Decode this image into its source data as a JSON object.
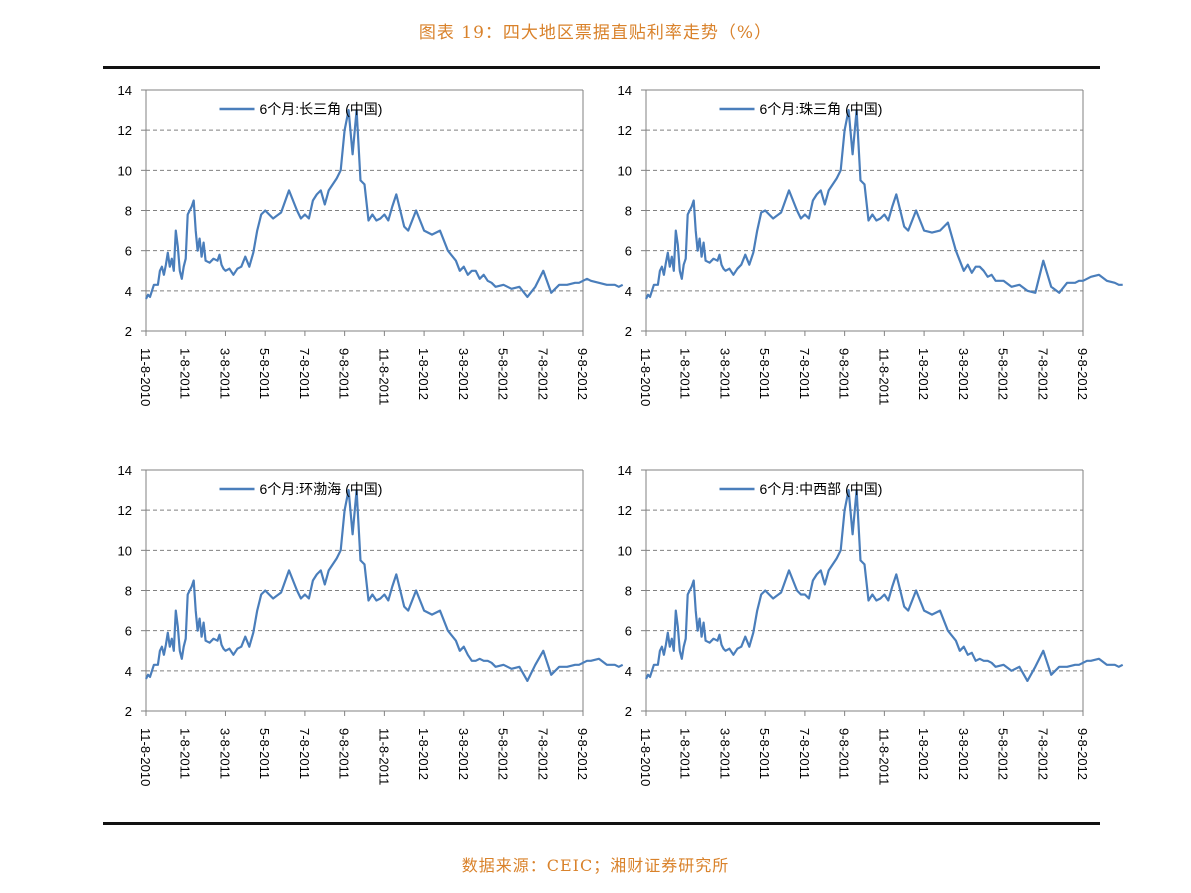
{
  "page": {
    "title": "图表 19：四大地区票据直贴利率走势（%）",
    "source": "数据来源：CEIC；湘财证券研究所"
  },
  "style": {
    "line_color": "#4a7ebb",
    "accent_color": "#d9822b"
  },
  "chart_data": [
    {
      "type": "line",
      "title": "",
      "legend": "6个月:长三角 (中国)",
      "legend_position": "top-center",
      "xlabel": "",
      "ylabel": "",
      "ylim": [
        2,
        14
      ],
      "yticks": [
        2,
        4,
        6,
        8,
        10,
        12,
        14
      ],
      "grid": "horizontal-dashed",
      "xtick_labels": [
        "11-8-2010",
        "1-8-2011",
        "3-8-2011",
        "5-8-2011",
        "7-8-2011",
        "9-8-2011",
        "11-8-2011",
        "1-8-2012",
        "3-8-2012",
        "5-8-2012",
        "7-8-2012",
        "9-8-2012"
      ],
      "series": [
        {
          "name": "6个月:长三角 (中国)",
          "x": [
            0,
            0.05,
            0.1,
            0.2,
            0.3,
            0.35,
            0.4,
            0.45,
            0.5,
            0.55,
            0.6,
            0.65,
            0.7,
            0.75,
            0.8,
            0.85,
            0.9,
            0.95,
            1,
            1.05,
            1.1,
            1.15,
            1.2,
            1.25,
            1.3,
            1.35,
            1.4,
            1.45,
            1.5,
            1.6,
            1.7,
            1.8,
            1.85,
            1.9,
            1.95,
            2,
            2.1,
            2.2,
            2.3,
            2.4,
            2.5,
            2.6,
            2.7,
            2.8,
            2.9,
            3,
            3.2,
            3.4,
            3.6,
            3.8,
            3.9,
            4,
            4.1,
            4.2,
            4.3,
            4.4,
            4.5,
            4.6,
            4.8,
            4.9,
            5,
            5.1,
            5.2,
            5.3,
            5.4,
            5.5,
            5.6,
            5.7,
            5.8,
            5.9,
            6,
            6.1,
            6.2,
            6.3,
            6.4,
            6.5,
            6.6,
            6.8,
            7,
            7.2,
            7.4,
            7.6,
            7.8,
            7.9,
            8,
            8.1,
            8.2,
            8.3,
            8.4,
            8.5,
            8.6,
            8.7,
            8.8,
            9,
            9.2,
            9.4,
            9.6,
            9.8,
            10,
            10.2,
            10.4,
            10.6,
            10.8,
            10.9,
            11,
            11.1,
            11.2,
            11.4,
            11.6,
            11.8,
            11.9,
            12
          ],
          "y": [
            3.6,
            3.8,
            3.7,
            4.3,
            4.3,
            5.0,
            5.2,
            4.8,
            5.3,
            5.9,
            5.2,
            5.6,
            5.0,
            7.0,
            6.2,
            5.0,
            4.6,
            5.2,
            5.6,
            7.8,
            8.0,
            8.2,
            8.5,
            7.0,
            6.0,
            6.6,
            5.7,
            6.4,
            5.5,
            5.4,
            5.6,
            5.5,
            5.8,
            5.3,
            5.1,
            5.0,
            5.1,
            4.8,
            5.1,
            5.2,
            5.7,
            5.2,
            5.9,
            7.0,
            7.8,
            8.0,
            7.6,
            7.9,
            9.0,
            8.0,
            7.6,
            7.8,
            7.6,
            8.5,
            8.8,
            9.0,
            8.3,
            9.0,
            9.6,
            10.0,
            12.0,
            13.0,
            10.8,
            13.0,
            9.5,
            9.3,
            7.5,
            7.8,
            7.5,
            7.6,
            7.8,
            7.5,
            8.2,
            8.8,
            8.0,
            7.2,
            7.0,
            8.0,
            7.0,
            6.8,
            7.0,
            6.0,
            5.5,
            5.0,
            5.2,
            4.8,
            5.0,
            5.0,
            4.6,
            4.8,
            4.5,
            4.4,
            4.2,
            4.3,
            4.1,
            4.2,
            3.7,
            4.2,
            5.0,
            3.9,
            4.3,
            4.3,
            4.4,
            4.4,
            4.5,
            4.6,
            4.5,
            4.4,
            4.3,
            4.3,
            4.2,
            4.3
          ]
        }
      ]
    },
    {
      "type": "line",
      "title": "",
      "legend": "6个月:珠三角 (中国)",
      "legend_position": "top-center",
      "xlabel": "",
      "ylabel": "",
      "ylim": [
        2,
        14
      ],
      "yticks": [
        2,
        4,
        6,
        8,
        10,
        12,
        14
      ],
      "grid": "horizontal-dashed",
      "xtick_labels": [
        "11-8-2010",
        "1-8-2011",
        "3-8-2011",
        "5-8-2011",
        "7-8-2011",
        "9-8-2011",
        "11-8-2011",
        "1-8-2012",
        "3-8-2012",
        "5-8-2012",
        "7-8-2012",
        "9-8-2012"
      ],
      "series": [
        {
          "name": "6个月:珠三角 (中国)",
          "x": [
            0,
            0.05,
            0.1,
            0.2,
            0.3,
            0.35,
            0.4,
            0.45,
            0.5,
            0.55,
            0.6,
            0.65,
            0.7,
            0.75,
            0.8,
            0.85,
            0.9,
            0.95,
            1,
            1.05,
            1.1,
            1.15,
            1.2,
            1.25,
            1.3,
            1.35,
            1.4,
            1.45,
            1.5,
            1.6,
            1.7,
            1.8,
            1.85,
            1.9,
            1.95,
            2,
            2.1,
            2.2,
            2.3,
            2.4,
            2.5,
            2.6,
            2.7,
            2.8,
            2.9,
            3,
            3.2,
            3.4,
            3.6,
            3.8,
            3.9,
            4,
            4.1,
            4.2,
            4.3,
            4.4,
            4.5,
            4.6,
            4.8,
            4.9,
            5,
            5.1,
            5.2,
            5.3,
            5.4,
            5.5,
            5.6,
            5.7,
            5.8,
            5.9,
            6,
            6.1,
            6.2,
            6.3,
            6.4,
            6.5,
            6.6,
            6.8,
            7,
            7.2,
            7.4,
            7.6,
            7.8,
            7.9,
            8,
            8.1,
            8.2,
            8.3,
            8.4,
            8.5,
            8.6,
            8.7,
            8.8,
            9,
            9.2,
            9.4,
            9.6,
            9.8,
            10,
            10.2,
            10.4,
            10.6,
            10.8,
            10.9,
            11,
            11.1,
            11.2,
            11.4,
            11.6,
            11.8,
            11.9,
            12
          ],
          "y": [
            3.6,
            3.8,
            3.7,
            4.3,
            4.3,
            5.0,
            5.2,
            4.8,
            5.4,
            5.9,
            5.2,
            5.7,
            5.0,
            7.0,
            6.3,
            5.0,
            4.6,
            5.3,
            5.6,
            7.8,
            8.0,
            8.2,
            8.5,
            7.0,
            6.0,
            6.6,
            5.7,
            6.4,
            5.5,
            5.4,
            5.6,
            5.5,
            5.8,
            5.3,
            5.1,
            5.0,
            5.1,
            4.8,
            5.1,
            5.3,
            5.8,
            5.3,
            5.9,
            7.0,
            7.9,
            8.0,
            7.6,
            7.9,
            9.0,
            8.0,
            7.6,
            7.8,
            7.6,
            8.5,
            8.8,
            9.0,
            8.3,
            9.0,
            9.6,
            10.0,
            12.0,
            13.0,
            10.8,
            13.0,
            9.5,
            9.3,
            7.5,
            7.8,
            7.5,
            7.6,
            7.8,
            7.5,
            8.2,
            8.8,
            8.0,
            7.2,
            7.0,
            8.0,
            7.0,
            6.9,
            7.0,
            7.4,
            6.0,
            5.5,
            5.0,
            5.3,
            4.9,
            5.2,
            5.2,
            5.0,
            4.7,
            4.8,
            4.5,
            4.5,
            4.2,
            4.3,
            4.0,
            3.9,
            5.5,
            4.2,
            3.9,
            4.4,
            4.4,
            4.5,
            4.5,
            4.6,
            4.7,
            4.8,
            4.5,
            4.4,
            4.3,
            4.3
          ]
        }
      ]
    },
    {
      "type": "line",
      "title": "",
      "legend": "6个月:环渤海 (中国)",
      "legend_position": "top-center",
      "xlabel": "",
      "ylabel": "",
      "ylim": [
        2,
        14
      ],
      "yticks": [
        2,
        4,
        6,
        8,
        10,
        12,
        14
      ],
      "grid": "horizontal-dashed",
      "xtick_labels": [
        "11-8-2010",
        "1-8-2011",
        "3-8-2011",
        "5-8-2011",
        "7-8-2011",
        "9-8-2011",
        "11-8-2011",
        "1-8-2012",
        "3-8-2012",
        "5-8-2012",
        "7-8-2012",
        "9-8-2012"
      ],
      "series": [
        {
          "name": "6个月:环渤海 (中国)",
          "x": [
            0,
            0.05,
            0.1,
            0.2,
            0.3,
            0.35,
            0.4,
            0.45,
            0.5,
            0.55,
            0.6,
            0.65,
            0.7,
            0.75,
            0.8,
            0.85,
            0.9,
            0.95,
            1,
            1.05,
            1.1,
            1.15,
            1.2,
            1.25,
            1.3,
            1.35,
            1.4,
            1.45,
            1.5,
            1.6,
            1.7,
            1.8,
            1.85,
            1.9,
            1.95,
            2,
            2.1,
            2.2,
            2.3,
            2.4,
            2.5,
            2.6,
            2.7,
            2.8,
            2.9,
            3,
            3.2,
            3.4,
            3.6,
            3.8,
            3.9,
            4,
            4.1,
            4.2,
            4.3,
            4.4,
            4.5,
            4.6,
            4.8,
            4.9,
            5,
            5.1,
            5.2,
            5.3,
            5.4,
            5.5,
            5.6,
            5.7,
            5.8,
            5.9,
            6,
            6.1,
            6.2,
            6.3,
            6.4,
            6.5,
            6.6,
            6.8,
            7,
            7.2,
            7.4,
            7.6,
            7.8,
            7.9,
            8,
            8.1,
            8.2,
            8.3,
            8.4,
            8.5,
            8.6,
            8.7,
            8.8,
            9,
            9.2,
            9.4,
            9.6,
            9.8,
            10,
            10.2,
            10.4,
            10.6,
            10.8,
            10.9,
            11,
            11.1,
            11.2,
            11.4,
            11.6,
            11.8,
            11.9,
            12
          ],
          "y": [
            3.6,
            3.8,
            3.7,
            4.3,
            4.3,
            5.0,
            5.2,
            4.8,
            5.3,
            5.9,
            5.2,
            5.6,
            5.0,
            7.0,
            6.2,
            5.0,
            4.6,
            5.2,
            5.6,
            7.8,
            8.0,
            8.2,
            8.5,
            7.0,
            6.0,
            6.6,
            5.7,
            6.4,
            5.5,
            5.4,
            5.6,
            5.5,
            5.8,
            5.3,
            5.1,
            5.0,
            5.1,
            4.8,
            5.1,
            5.2,
            5.7,
            5.2,
            5.9,
            7.0,
            7.8,
            8.0,
            7.6,
            7.9,
            9.0,
            8.0,
            7.6,
            7.8,
            7.6,
            8.5,
            8.8,
            9.0,
            8.3,
            9.0,
            9.6,
            10.0,
            12.0,
            13.0,
            10.8,
            13.0,
            9.5,
            9.3,
            7.5,
            7.8,
            7.5,
            7.6,
            7.8,
            7.5,
            8.2,
            8.8,
            8.0,
            7.2,
            7.0,
            8.0,
            7.0,
            6.8,
            7.0,
            6.0,
            5.5,
            5.0,
            5.2,
            4.8,
            4.5,
            4.5,
            4.6,
            4.5,
            4.5,
            4.4,
            4.2,
            4.3,
            4.1,
            4.2,
            3.5,
            4.3,
            5.0,
            3.8,
            4.2,
            4.2,
            4.3,
            4.3,
            4.4,
            4.5,
            4.5,
            4.6,
            4.3,
            4.3,
            4.2,
            4.3
          ]
        }
      ]
    },
    {
      "type": "line",
      "title": "",
      "legend": "6个月:中西部 (中国)",
      "legend_position": "top-center",
      "xlabel": "",
      "ylabel": "",
      "ylim": [
        2,
        14
      ],
      "yticks": [
        2,
        4,
        6,
        8,
        10,
        12,
        14
      ],
      "grid": "horizontal-dashed",
      "xtick_labels": [
        "11-8-2010",
        "1-8-2011",
        "3-8-2011",
        "5-8-2011",
        "7-8-2011",
        "9-8-2011",
        "11-8-2011",
        "1-8-2012",
        "3-8-2012",
        "5-8-2012",
        "7-8-2012",
        "9-8-2012"
      ],
      "series": [
        {
          "name": "6个月:中西部 (中国)",
          "x": [
            0,
            0.05,
            0.1,
            0.2,
            0.3,
            0.35,
            0.4,
            0.45,
            0.5,
            0.55,
            0.6,
            0.65,
            0.7,
            0.75,
            0.8,
            0.85,
            0.9,
            0.95,
            1,
            1.05,
            1.1,
            1.15,
            1.2,
            1.25,
            1.3,
            1.35,
            1.4,
            1.45,
            1.5,
            1.6,
            1.7,
            1.8,
            1.85,
            1.9,
            1.95,
            2,
            2.1,
            2.2,
            2.3,
            2.4,
            2.5,
            2.6,
            2.7,
            2.8,
            2.9,
            3,
            3.2,
            3.4,
            3.6,
            3.8,
            3.9,
            4,
            4.1,
            4.2,
            4.3,
            4.4,
            4.5,
            4.6,
            4.8,
            4.9,
            5,
            5.1,
            5.2,
            5.3,
            5.4,
            5.5,
            5.6,
            5.7,
            5.8,
            5.9,
            6,
            6.1,
            6.2,
            6.3,
            6.4,
            6.5,
            6.6,
            6.8,
            7,
            7.2,
            7.4,
            7.6,
            7.8,
            7.9,
            8,
            8.1,
            8.2,
            8.3,
            8.4,
            8.5,
            8.6,
            8.7,
            8.8,
            9,
            9.2,
            9.4,
            9.6,
            9.8,
            10,
            10.2,
            10.4,
            10.6,
            10.8,
            10.9,
            11,
            11.1,
            11.2,
            11.4,
            11.6,
            11.8,
            11.9,
            12
          ],
          "y": [
            3.6,
            3.8,
            3.7,
            4.3,
            4.3,
            5.0,
            5.2,
            4.8,
            5.3,
            5.9,
            5.2,
            5.6,
            5.0,
            7.0,
            6.2,
            5.0,
            4.6,
            5.2,
            5.6,
            7.8,
            8.0,
            8.2,
            8.5,
            7.0,
            6.0,
            6.6,
            5.7,
            6.4,
            5.5,
            5.4,
            5.6,
            5.5,
            5.8,
            5.3,
            5.1,
            5.0,
            5.1,
            4.8,
            5.1,
            5.2,
            5.7,
            5.2,
            5.9,
            7.0,
            7.8,
            8.0,
            7.6,
            7.9,
            9.0,
            8.0,
            7.8,
            7.8,
            7.6,
            8.5,
            8.8,
            9.0,
            8.3,
            9.0,
            9.6,
            10.0,
            12.0,
            13.0,
            10.8,
            13.0,
            9.5,
            9.3,
            7.5,
            7.8,
            7.5,
            7.6,
            7.8,
            7.5,
            8.2,
            8.8,
            8.0,
            7.2,
            7.0,
            8.0,
            7.0,
            6.8,
            7.0,
            6.0,
            5.5,
            5.0,
            5.2,
            4.8,
            4.9,
            4.5,
            4.6,
            4.5,
            4.5,
            4.4,
            4.2,
            4.3,
            4.0,
            4.2,
            3.5,
            4.2,
            5.0,
            3.8,
            4.2,
            4.2,
            4.3,
            4.3,
            4.4,
            4.5,
            4.5,
            4.6,
            4.3,
            4.3,
            4.2,
            4.3
          ]
        }
      ]
    }
  ]
}
